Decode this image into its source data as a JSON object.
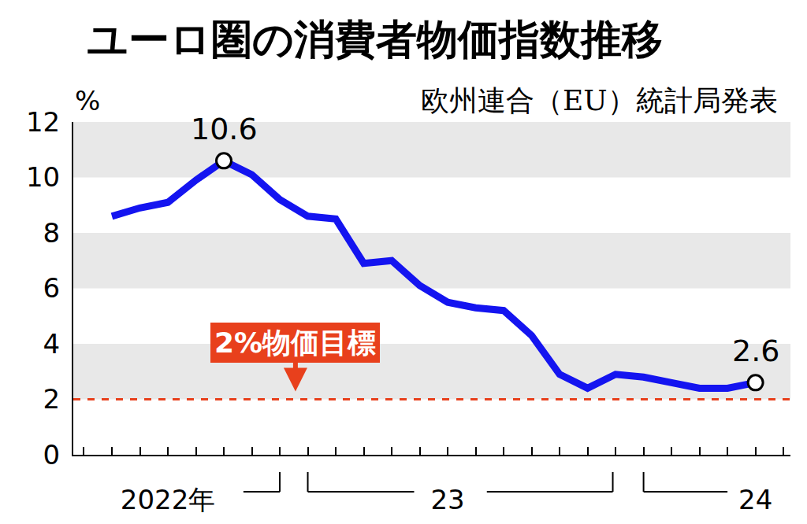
{
  "chart_data": {
    "type": "line",
    "title": "ユーロ圏の消費者物価指数推移",
    "subtitle": "欧州連合（EU）統計局発表",
    "y_label": "%",
    "categories": [
      null,
      null,
      "2022年",
      null,
      null,
      null,
      null,
      null,
      null,
      null,
      null,
      null,
      "23",
      null,
      null,
      null,
      null,
      null,
      null,
      null,
      null,
      null,
      null,
      "24"
    ],
    "values": [
      8.6,
      8.9,
      9.1,
      9.9,
      10.6,
      10.1,
      9.2,
      8.6,
      8.5,
      6.9,
      7.0,
      6.1,
      5.5,
      5.3,
      5.2,
      4.3,
      2.9,
      2.4,
      2.9,
      2.8,
      2.6,
      2.4,
      2.4,
      2.6
    ],
    "color": "#1414f0",
    "ylim": [
      0,
      12
    ],
    "yticks": [
      0,
      2,
      4,
      6,
      8,
      10,
      12
    ],
    "annotations": [
      {
        "index": 4,
        "text": "10.6"
      },
      {
        "index": 23,
        "text": "2.6"
      }
    ],
    "reference_line": {
      "value": 2,
      "label": "2%物価目標",
      "color": "#e8401c"
    }
  }
}
